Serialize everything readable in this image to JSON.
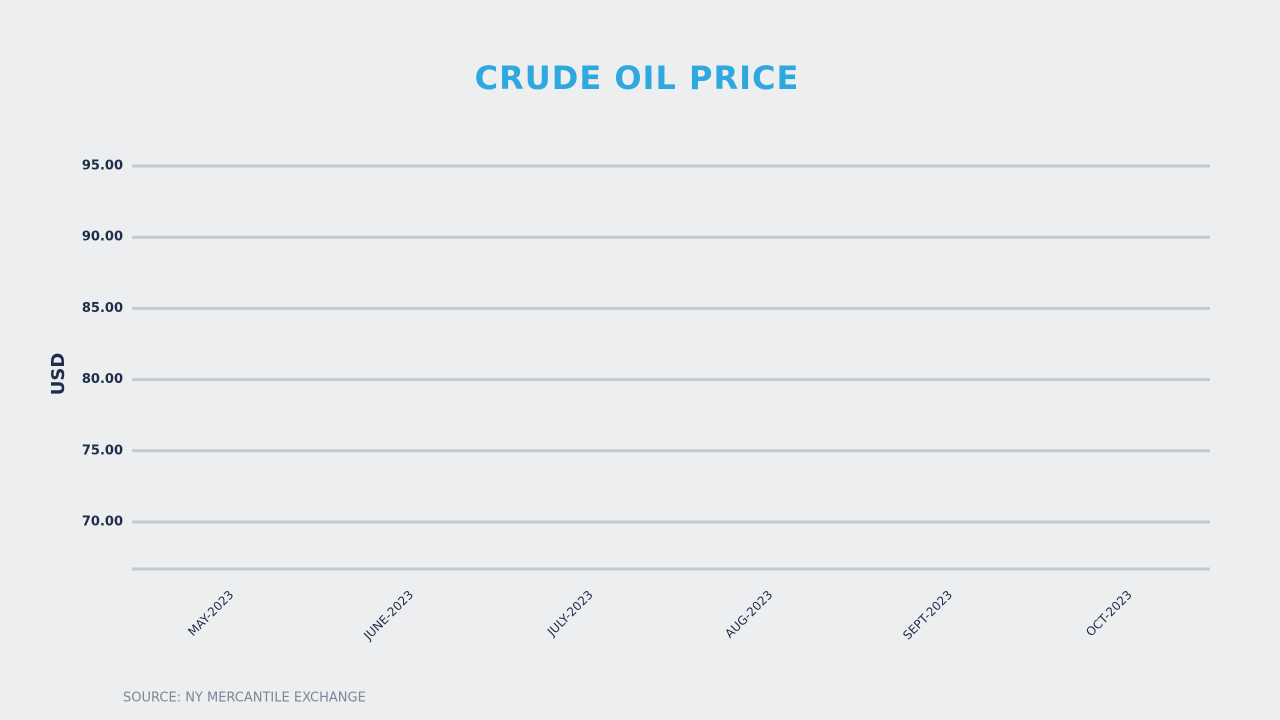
{
  "chart_data": {
    "type": "line",
    "title": "CRUDE OIL PRICE",
    "y_label": "USD",
    "source": "SOURCE: NY MERCANTILE EXCHANGE",
    "categories": [
      "MAY-2023",
      "JUNE-2023",
      "JULY-2023",
      "AUG-2023",
      "SEPT-2023",
      "OCT-2023"
    ],
    "ylim": [
      66.7,
      95
    ],
    "yticks": [
      {
        "value": 70,
        "label": "70.00"
      },
      {
        "value": 75,
        "label": "75.00"
      },
      {
        "value": 80,
        "label": "80.00"
      },
      {
        "value": 85,
        "label": "85.00"
      },
      {
        "value": 90,
        "label": "90.00"
      },
      {
        "value": 95,
        "label": "95.00"
      }
    ],
    "grid": true
  }
}
